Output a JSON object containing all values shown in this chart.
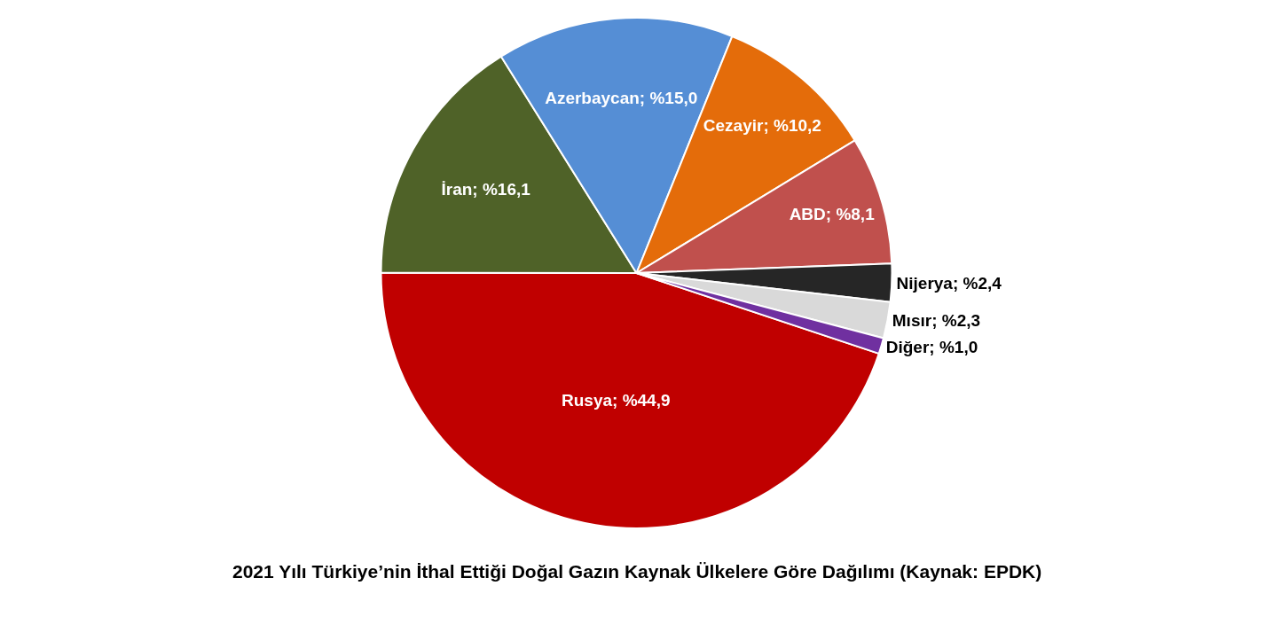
{
  "chart_data": {
    "type": "pie",
    "categories": [
      "Rusya",
      "İran",
      "Azerbaycan",
      "Cezayir",
      "ABD",
      "Nijerya",
      "Mısır",
      "Diğer"
    ],
    "values": [
      44.9,
      16.1,
      15.0,
      10.2,
      8.1,
      2.4,
      2.3,
      1.0
    ],
    "value_labels": [
      "%44,9",
      "%16,1",
      "%15,0",
      "%10,2",
      "%8,1",
      "%2,4",
      "%2,3",
      "%1,0"
    ],
    "colors": [
      "#c00000",
      "#4f6228",
      "#558ed5",
      "#e46c0a",
      "#c0504d",
      "#262626",
      "#d9d9d9",
      "#7030a0"
    ],
    "annotations": [
      "2021 Yılı Türkiye’nin İthal Ettiği Doğal Gazın Kaynak Ülkelere Göre Dağılımı (Kaynak: EPDK)"
    ]
  }
}
